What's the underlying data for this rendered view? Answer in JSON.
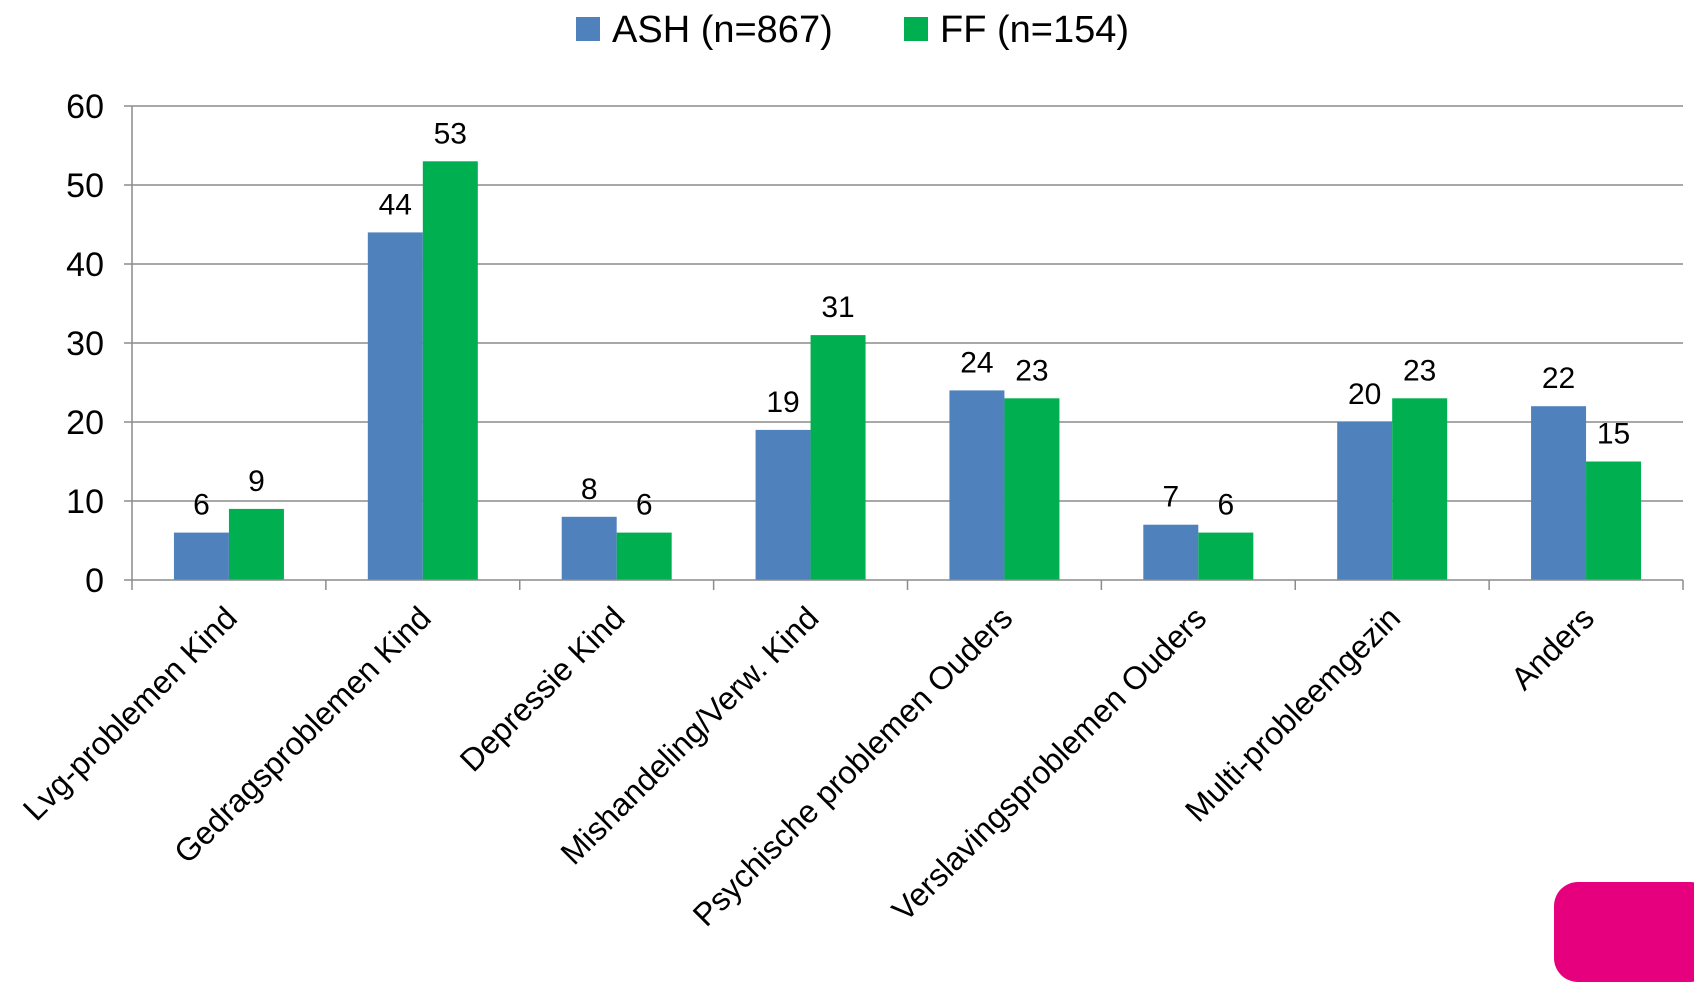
{
  "chart_data": {
    "type": "bar",
    "title": "",
    "xlabel": "",
    "ylabel": "",
    "ylim": [
      0,
      60
    ],
    "yticks": [
      "0",
      "10",
      "20",
      "30",
      "40",
      "50",
      "60"
    ],
    "grid": true,
    "legend_position": "top",
    "categories": [
      "Lvg-problemen Kind",
      "Gedragsproblemen Kind",
      "Depressie Kind",
      "Mishandeling/Verw. Kind",
      "Psychische problemen Ouders",
      "Verslavingsproblemen Ouders",
      "Multi-probleemgezin",
      "Anders"
    ],
    "series": [
      {
        "name": "ASH (n=867)",
        "color": "#4f81bd",
        "values": [
          6,
          44,
          8,
          19,
          24,
          7,
          20,
          22
        ]
      },
      {
        "name": "FF (n=154)",
        "color": "#00b050",
        "values": [
          9,
          53,
          6,
          31,
          23,
          6,
          23,
          15
        ]
      }
    ]
  },
  "decoration": {
    "corner_color": "#e6007e"
  }
}
